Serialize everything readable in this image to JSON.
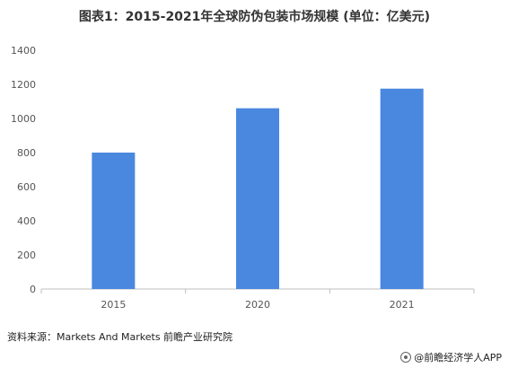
{
  "chart_data": {
    "type": "bar",
    "title": "图表1：2015-2021年全球防伪包装市场规模 (单位：亿美元)",
    "categories": [
      "2015",
      "2020",
      "2021"
    ],
    "values": [
      800,
      1060,
      1175
    ],
    "ylim": [
      0,
      1400
    ],
    "yticks": [
      0,
      200,
      400,
      600,
      800,
      1000,
      1200,
      1400
    ],
    "grid": false,
    "bar_color": "#4a88e0",
    "axis_color": "#bfbfbf"
  },
  "footer": {
    "source": "资料来源：Markets And Markets 前瞻产业研究院",
    "brand": "@前瞻经济学人APP",
    "brand_icon": "qianzhan-logo-icon"
  }
}
